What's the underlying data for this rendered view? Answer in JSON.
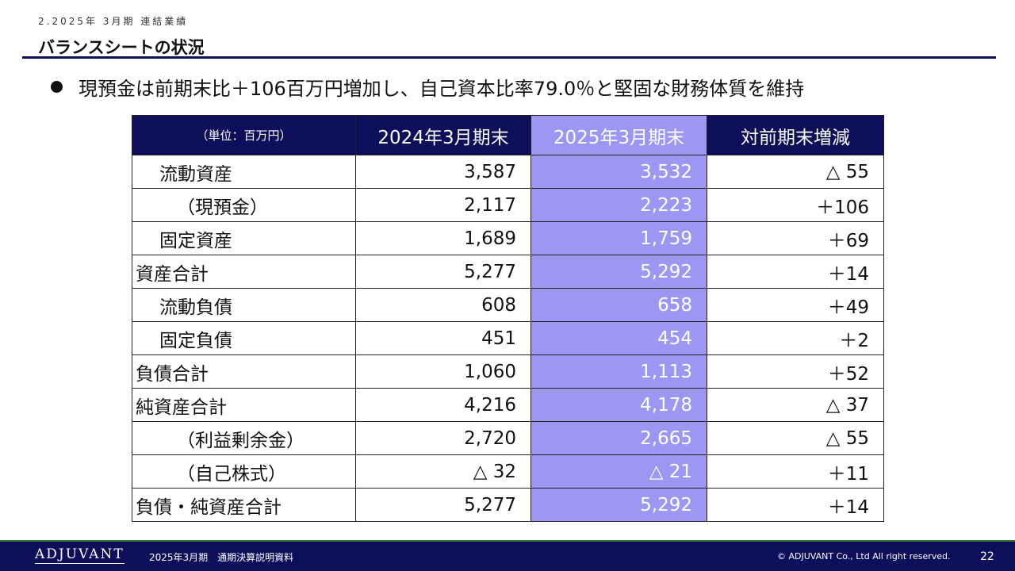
{
  "section_label": "2.2025年 3月期 連結業績",
  "title": "バランスシートの状況",
  "bullet": "現預金は前期末比＋106百万円増加し、自己資本比率79.0％と堅固な財務体質を維持",
  "table": {
    "headers": [
      "（単位：百万円）",
      "2024年3月期末",
      "2025年3月期末",
      "対前期末増減"
    ],
    "highlight_color": "#9b97f2",
    "header_color": "#0d0f5a",
    "rows": [
      {
        "label": "流動資産",
        "prev": "3,587",
        "curr": "3,532",
        "diff": "△ 55"
      },
      {
        "label": "（現預金）",
        "prev": "2,117",
        "curr": "2,223",
        "diff": "＋106"
      },
      {
        "label": "固定資産",
        "prev": "1,689",
        "curr": "1,759",
        "diff": "＋69"
      },
      {
        "label": "資産合計",
        "prev": "5,277",
        "curr": "5,292",
        "diff": "＋14"
      },
      {
        "label": "流動負債",
        "prev": "608",
        "curr": "658",
        "diff": "＋49"
      },
      {
        "label": "固定負債",
        "prev": "451",
        "curr": "454",
        "diff": "＋2"
      },
      {
        "label": "負債合計",
        "prev": "1,060",
        "curr": "1,113",
        "diff": "＋52"
      },
      {
        "label": "純資産合計",
        "prev": "4,216",
        "curr": "4,178",
        "diff": "△ 37"
      },
      {
        "label": "（利益剰余金）",
        "prev": "2,720",
        "curr": "2,665",
        "diff": "△ 55"
      },
      {
        "label": "（自己株式）",
        "prev": "△ 32",
        "curr": "△ 21",
        "diff": "＋11"
      },
      {
        "label": "負債・純資産合計",
        "prev": "5,277",
        "curr": "5,292",
        "diff": "＋14"
      }
    ]
  },
  "footer": {
    "logo": "ADJUVANT",
    "document": "2025年3月期　通期決算説明資料",
    "copyright": "© ADJUVANT Co., Ltd All right reserved.",
    "page": "22"
  }
}
